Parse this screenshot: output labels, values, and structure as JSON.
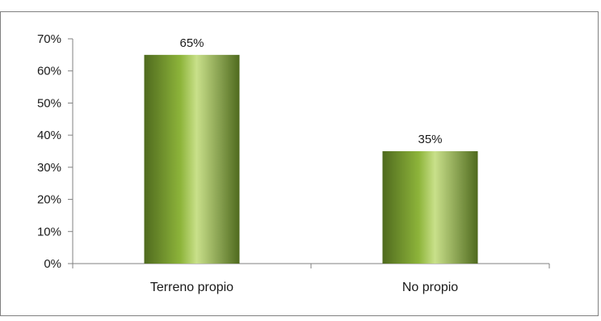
{
  "chart_data": {
    "type": "bar",
    "categories": [
      "Terreno propio",
      "No propio"
    ],
    "values": [
      65,
      35
    ],
    "data_labels": [
      "65%",
      "35%"
    ],
    "y_ticks": [
      0,
      10,
      20,
      30,
      40,
      50,
      60,
      70
    ],
    "y_tick_labels": [
      "0%",
      "10%",
      "20%",
      "30%",
      "40%",
      "50%",
      "60%",
      "70%"
    ],
    "ylim": [
      0,
      70
    ],
    "grid": false,
    "legend": "none",
    "colors": {
      "bar_dark": "#4f6a1e",
      "bar_mid": "#8db43a",
      "bar_light": "#c9e08a",
      "axis": "#808080",
      "border": "#808080"
    }
  }
}
